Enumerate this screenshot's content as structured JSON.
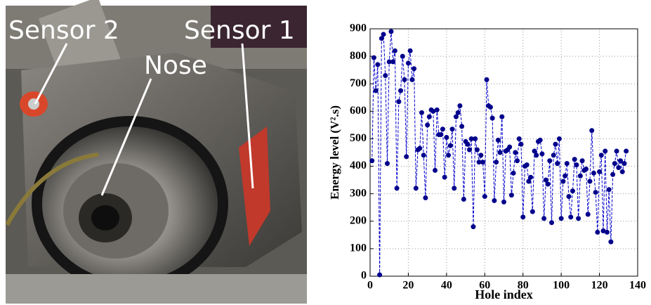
{
  "photo_labels": {
    "sensor_2": "Sensor 2",
    "nose": "Nose",
    "sensor_1": "Sensor 1"
  },
  "chart_data": {
    "type": "line",
    "xlabel": "Hole index",
    "ylabel": "Energy level (V².s)",
    "x": [
      1,
      2,
      3,
      4,
      5,
      6,
      7,
      8,
      9,
      10,
      11,
      12,
      13,
      14,
      15,
      16,
      17,
      18,
      19,
      20,
      21,
      22,
      23,
      24,
      25,
      26,
      27,
      28,
      29,
      30,
      31,
      32,
      33,
      34,
      35,
      36,
      37,
      38,
      39,
      40,
      41,
      42,
      43,
      44,
      45,
      46,
      47,
      48,
      49,
      50,
      51,
      52,
      53,
      54,
      55,
      56,
      57,
      58,
      59,
      60,
      61,
      62,
      63,
      64,
      65,
      66,
      67,
      68,
      69,
      70,
      71,
      72,
      73,
      74,
      75,
      76,
      77,
      78,
      79,
      80,
      81,
      82,
      83,
      84,
      85,
      86,
      87,
      88,
      89,
      90,
      91,
      92,
      93,
      94,
      95,
      96,
      97,
      98,
      99,
      100,
      101,
      102,
      103,
      104,
      105,
      106,
      107,
      108,
      109,
      110,
      111,
      112,
      113,
      114,
      115,
      116,
      117,
      118,
      119,
      120,
      121,
      122,
      123,
      124,
      125,
      126,
      127,
      128,
      129,
      130,
      131,
      132,
      133,
      134
    ],
    "values": [
      420,
      795,
      675,
      770,
      5,
      865,
      880,
      730,
      410,
      780,
      890,
      780,
      820,
      320,
      635,
      675,
      800,
      715,
      435,
      775,
      820,
      715,
      755,
      320,
      460,
      465,
      595,
      440,
      285,
      550,
      580,
      605,
      600,
      385,
      605,
      515,
      515,
      535,
      360,
      505,
      440,
      475,
      535,
      320,
      580,
      595,
      620,
      545,
      280,
      490,
      480,
      460,
      500,
      180,
      500,
      460,
      415,
      440,
      415,
      290,
      715,
      620,
      615,
      575,
      275,
      415,
      495,
      450,
      580,
      270,
      455,
      460,
      470,
      295,
      375,
      450,
      420,
      500,
      480,
      215,
      400,
      405,
      345,
      360,
      235,
      455,
      440,
      490,
      495,
      445,
      210,
      350,
      335,
      420,
      195,
      440,
      480,
      410,
      500,
      210,
      345,
      365,
      410,
      290,
      215,
      310,
      425,
      405,
      210,
      365,
      420,
      385,
      390,
      225,
      345,
      530,
      375,
      305,
      160,
      380,
      440,
      165,
      455,
      160,
      315,
      125,
      370,
      410,
      455,
      395,
      420,
      380,
      410,
      455
    ],
    "color": "#0000cc",
    "marker_color": "#00008b",
    "xlim": [
      0,
      140
    ],
    "xticks": [
      0,
      20,
      40,
      60,
      80,
      100,
      120,
      140
    ],
    "ylim": [
      0,
      900
    ],
    "yticks": [
      0,
      100,
      200,
      300,
      400,
      500,
      600,
      700,
      800,
      900
    ],
    "grid": true
  }
}
